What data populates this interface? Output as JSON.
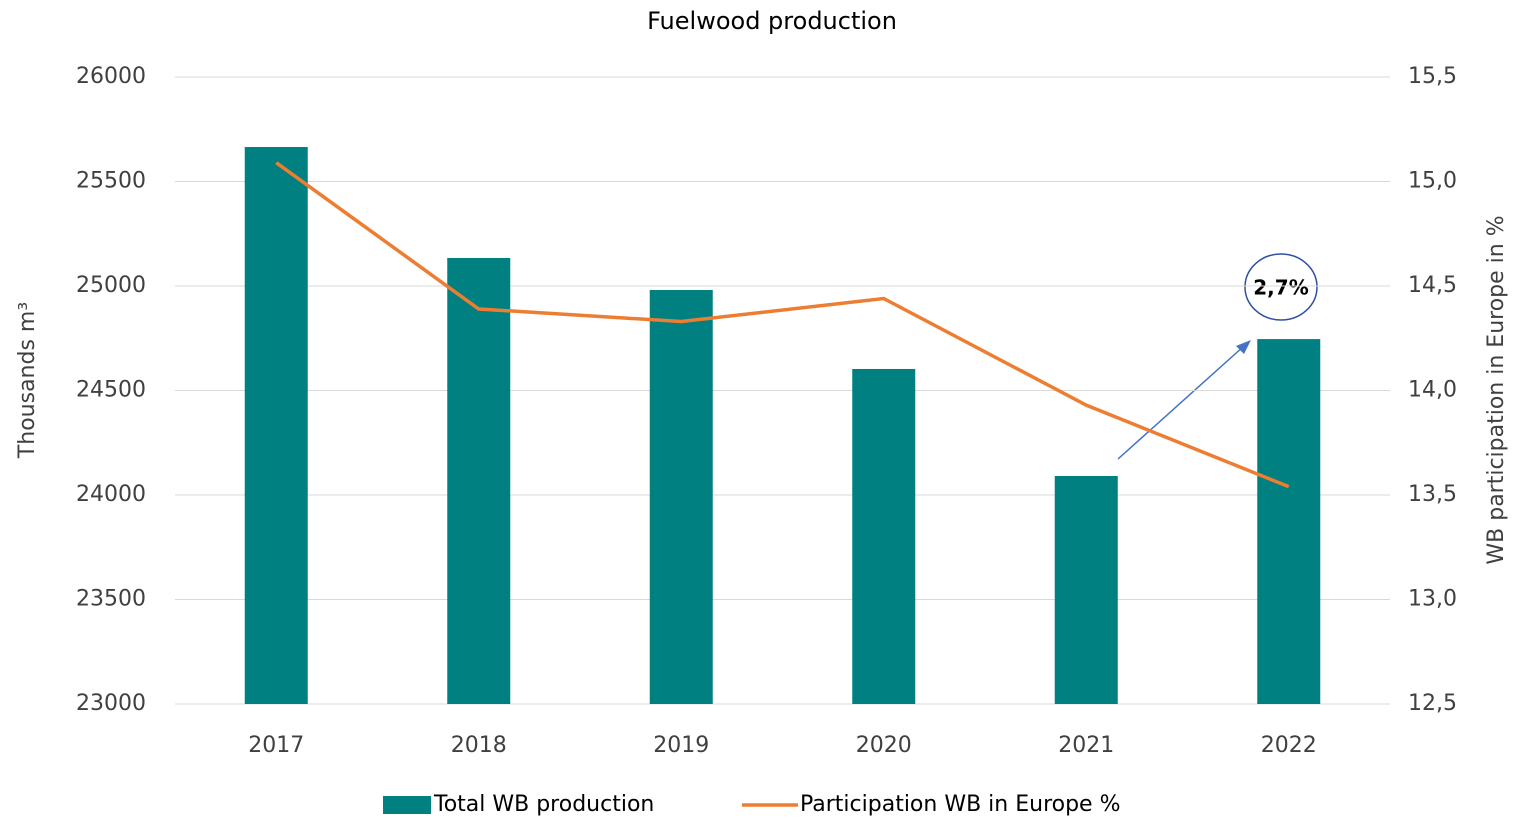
{
  "chart_data": {
    "type": "bar_line",
    "title": "Fuelwood production",
    "ylabel": "Thousands  m³",
    "y2label": "WB participation in Europe in %",
    "annotation": "2,7%",
    "categories": [
      "2017",
      "2018",
      "2019",
      "2020",
      "2021",
      "2022"
    ],
    "series": [
      {
        "name": "Total WB production",
        "type": "bar",
        "color": "#008080",
        "values": [
          25665,
          25134,
          24981,
          24603,
          24091,
          24746
        ]
      },
      {
        "name": "Participation WB in Europe %",
        "type": "line",
        "axis": "y2",
        "color": "#ed7d31",
        "values": [
          15.09,
          14.39,
          14.33,
          14.44,
          13.93,
          13.54
        ]
      }
    ],
    "ylim": [
      23000,
      26000
    ],
    "yticks": [
      23000,
      23500,
      24000,
      24500,
      25000,
      25500,
      26000
    ],
    "y2lim": [
      12.5,
      15.5
    ],
    "y2ticks": [
      {
        "value": 12.5,
        "label": "12,5"
      },
      {
        "value": 13,
        "label": "13,0"
      },
      {
        "value": 13.5,
        "label": "13,5"
      },
      {
        "value": 14,
        "label": "14,0"
      },
      {
        "value": 14.5,
        "label": "14,5"
      },
      {
        "value": 15,
        "label": "15,0"
      },
      {
        "value": 15.5,
        "label": "15,5"
      }
    ],
    "grid": true
  }
}
